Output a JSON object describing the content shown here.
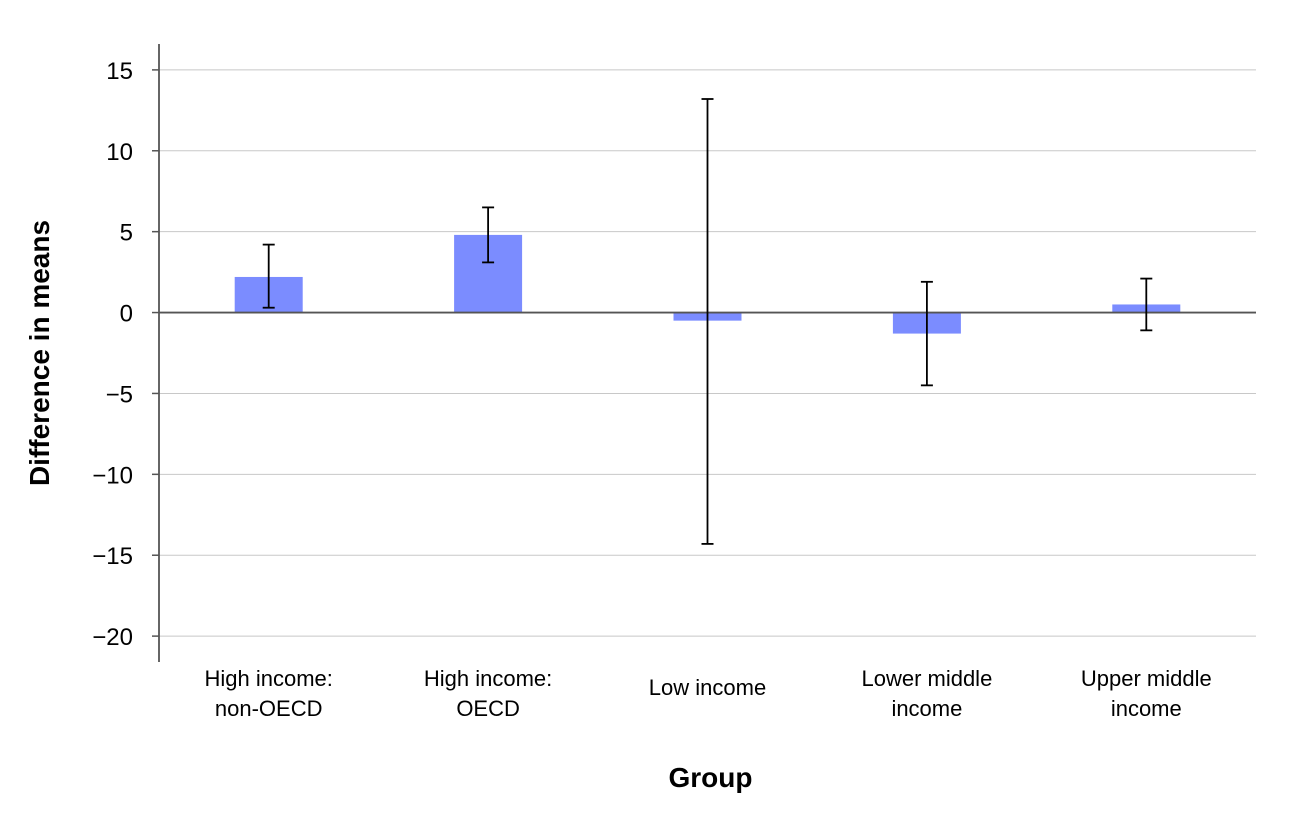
{
  "chart_data": {
    "type": "bar",
    "title": "",
    "xlabel": "Group",
    "ylabel": "Difference in means",
    "categories": [
      [
        "High income:",
        "non-OECD"
      ],
      [
        "High income:",
        "OECD"
      ],
      [
        "Low income"
      ],
      [
        "Lower middle",
        "income"
      ],
      [
        "Upper middle",
        "income"
      ]
    ],
    "values": [
      2.2,
      4.8,
      -0.5,
      -1.3,
      0.5
    ],
    "error_low": [
      0.3,
      3.1,
      -14.3,
      -4.5,
      -1.1
    ],
    "error_high": [
      4.2,
      6.5,
      13.2,
      1.9,
      2.1
    ],
    "ylim": [
      -21.6,
      16.6
    ],
    "yticks": [
      15,
      10,
      5,
      0,
      -5,
      -10,
      -15,
      -20
    ],
    "ytick_labels": [
      "15",
      "10",
      "5",
      "0",
      "−5",
      "−10",
      "−15",
      "−20"
    ],
    "grid": true,
    "bar_color": "#7b8cff",
    "error_color": "#000000",
    "zero_line_color": "#555555",
    "grid_color": "#c8c8c8"
  }
}
